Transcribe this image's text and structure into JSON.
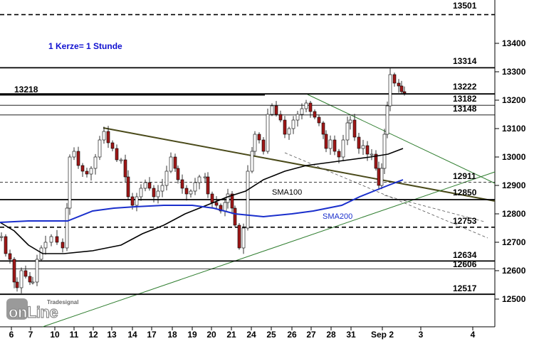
{
  "chart_data": {
    "type": "candlestick",
    "note": "1 Kerze= 1 Stunde",
    "y_axis": {
      "ylim": [
        12450,
        13550
      ],
      "ticks": [
        12500,
        12600,
        12700,
        12800,
        12900,
        13000,
        13100,
        13200,
        13300,
        13400
      ]
    },
    "x_axis": {
      "tick_labels": [
        "6",
        "7",
        "10",
        "11",
        "12",
        "13",
        "14",
        "17",
        "18",
        "19",
        "20",
        "21",
        "24",
        "25",
        "26",
        "27",
        "28",
        "31",
        "Sep 2",
        "3",
        "4"
      ]
    },
    "levels": [
      {
        "value": 13501,
        "label": "13501",
        "style": "dashed"
      },
      {
        "value": 13314,
        "label": "13314",
        "style": "solid"
      },
      {
        "value": 13222,
        "label": "13222",
        "style": "solid"
      },
      {
        "value": 13218,
        "label": "13218",
        "style": "solid"
      },
      {
        "value": 13182,
        "label": "13182",
        "style": "thin"
      },
      {
        "value": 13148,
        "label": "13148",
        "style": "thin"
      },
      {
        "value": 12911,
        "label": "12911",
        "style": "dashed-thin"
      },
      {
        "value": 12850,
        "label": "12850",
        "style": "solid"
      },
      {
        "value": 12753,
        "label": "12753",
        "style": "dashed"
      },
      {
        "value": 12634,
        "label": "12634",
        "style": "solid"
      },
      {
        "value": 12606,
        "label": "12606",
        "style": "thin"
      },
      {
        "value": 12517,
        "label": "12517",
        "style": "solid"
      }
    ],
    "indicators": [
      {
        "name": "SMA100",
        "color": "#000000"
      },
      {
        "name": "SMA200",
        "color": "#1a2fcc"
      }
    ],
    "colors": {
      "up": "#ffffff",
      "down": "#a01818",
      "sma100": "#000000",
      "sma200": "#1a2fcc",
      "trend_down": "#4a4a1a",
      "trend_thin": "#2e7d2e"
    }
  },
  "watermark": {
    "brand": "Tradesignal",
    "logo": "onLine"
  }
}
